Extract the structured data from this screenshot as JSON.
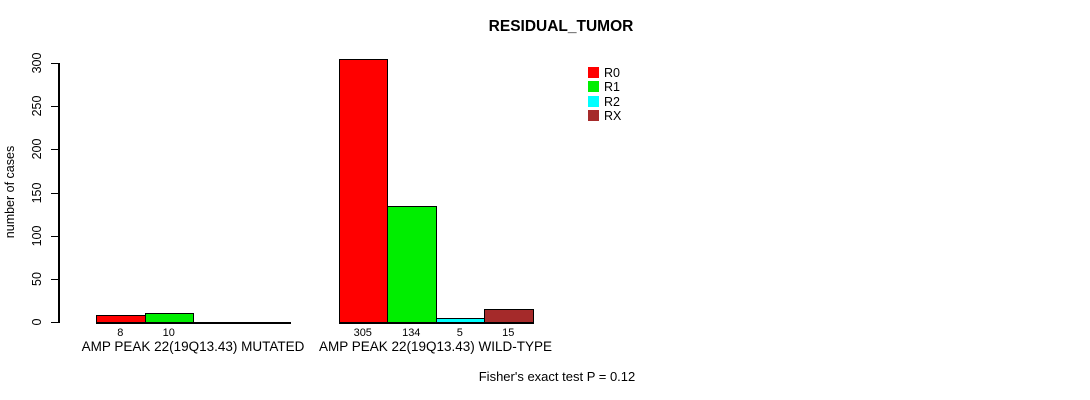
{
  "chart_data": {
    "type": "bar",
    "title": "RESIDUAL_TUMOR",
    "ylabel": "number of cases",
    "xlabel": "",
    "ylim": [
      0,
      300
    ],
    "yticks": [
      0,
      50,
      100,
      150,
      200,
      250,
      300
    ],
    "grid": false,
    "legend_position": "top-right-inside",
    "categories": [
      "AMP PEAK 22(19Q13.43) MUTATED",
      "AMP PEAK 22(19Q13.43) WILD-TYPE"
    ],
    "series": [
      {
        "name": "R0",
        "color": "#ff0000",
        "values": [
          8,
          305
        ]
      },
      {
        "name": "R1",
        "color": "#00ee00",
        "values": [
          10,
          134
        ]
      },
      {
        "name": "R2",
        "color": "#00ffff",
        "values": [
          0,
          5
        ]
      },
      {
        "name": "RX",
        "color": "#a52a2a",
        "values": [
          0,
          15
        ]
      }
    ],
    "bar_value_labels": {
      "group_0": [
        "8",
        "10"
      ],
      "group_1": [
        "305",
        "134",
        "5",
        "15"
      ]
    },
    "annotation": "Fisher's exact test P = 0.12",
    "text_color": "#000000",
    "axis_color": "#000000"
  }
}
